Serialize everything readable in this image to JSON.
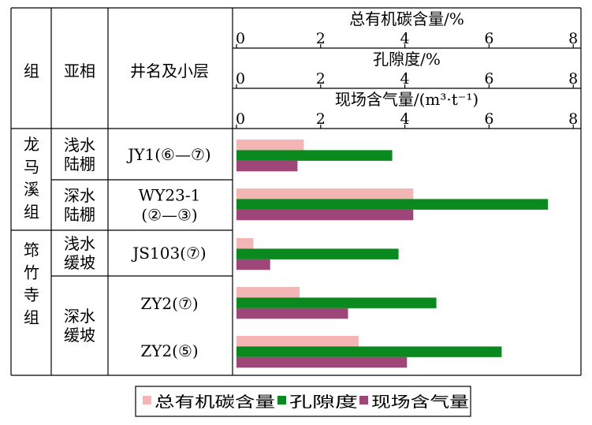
{
  "chart_data": {
    "type": "bar",
    "orientation": "horizontal",
    "headers": {
      "group": "组",
      "subfacies": "亚相",
      "well": "井名及小层"
    },
    "axes": [
      {
        "label": "总有机碳含量/%",
        "range": [
          0,
          8
        ],
        "ticks": [
          "0",
          "2",
          "4",
          "6",
          "8"
        ]
      },
      {
        "label": "孔隙度/%",
        "range": [
          0,
          8
        ],
        "ticks": [
          "0",
          "2",
          "4",
          "6",
          "8"
        ]
      },
      {
        "label": "现场含气量/(m³·t⁻¹)",
        "range": [
          0,
          8
        ],
        "ticks": [
          "0",
          "2",
          "4",
          "6",
          "8"
        ]
      }
    ],
    "groups": [
      {
        "name": "龙马溪组",
        "chars": [
          "龙",
          "马",
          "溪",
          "组"
        ]
      },
      {
        "name": "筇竹寺组",
        "chars": [
          "筇",
          "竹",
          "寺",
          "组"
        ]
      }
    ],
    "subfacies": [
      {
        "lines": [
          "浅水",
          "陆棚"
        ]
      },
      {
        "lines": [
          "深水",
          "陆棚"
        ]
      },
      {
        "lines": [
          "浅水",
          "缓坡"
        ]
      },
      {
        "lines": [
          "深水",
          "缓坡"
        ]
      }
    ],
    "categories": [
      {
        "lines": [
          "JY1(⑥—⑦)"
        ]
      },
      {
        "lines": [
          "WY23-1",
          "(②—③)"
        ]
      },
      {
        "lines": [
          "JS103(⑦)"
        ]
      },
      {
        "lines": [
          "ZY2(⑦)"
        ]
      },
      {
        "lines": [
          "ZY2(⑤)"
        ]
      }
    ],
    "series": [
      {
        "name": "总有机碳含量",
        "color": "#f4b6b4",
        "values": [
          1.6,
          4.2,
          0.4,
          1.5,
          2.9
        ]
      },
      {
        "name": "孔隙度",
        "color": "#0a8a1e",
        "values": [
          3.7,
          7.4,
          3.85,
          4.75,
          6.3
        ]
      },
      {
        "name": "现场含气量",
        "color": "#9e467a",
        "values": [
          1.45,
          4.2,
          0.8,
          2.65,
          4.05
        ]
      }
    ],
    "legend": "bottom",
    "grid": false
  }
}
